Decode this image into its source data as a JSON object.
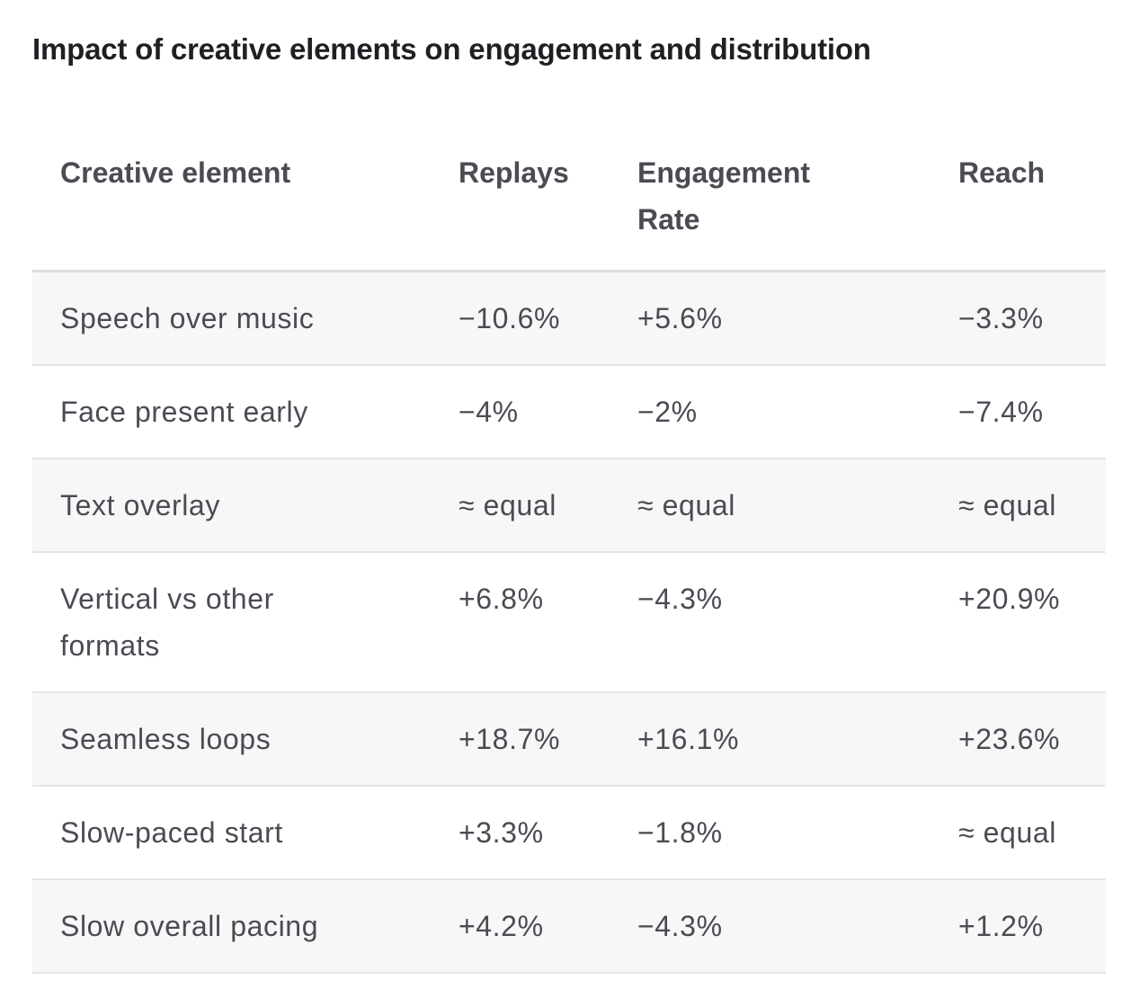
{
  "title": "Impact of creative elements on engagement and distribution",
  "table": {
    "headers": [
      "Creative element",
      "Replays",
      "Engagement Rate",
      "Reach"
    ],
    "rows": [
      [
        "Speech over music",
        "−10.6%",
        "+5.6%",
        "−3.3%"
      ],
      [
        "Face present early",
        "−4%",
        "−2%",
        "−7.4%"
      ],
      [
        "Text overlay",
        "≈ equal",
        "≈ equal",
        "≈ equal"
      ],
      [
        "Vertical vs other formats",
        "+6.8%",
        "−4.3%",
        "+20.9%"
      ],
      [
        "Seamless loops",
        "+18.7%",
        "+16.1%",
        "+23.6%"
      ],
      [
        "Slow-paced start",
        "+3.3%",
        "−1.8%",
        "≈ equal"
      ],
      [
        "Slow overall pacing",
        "+4.2%",
        "−4.3%",
        "+1.2%"
      ]
    ]
  }
}
